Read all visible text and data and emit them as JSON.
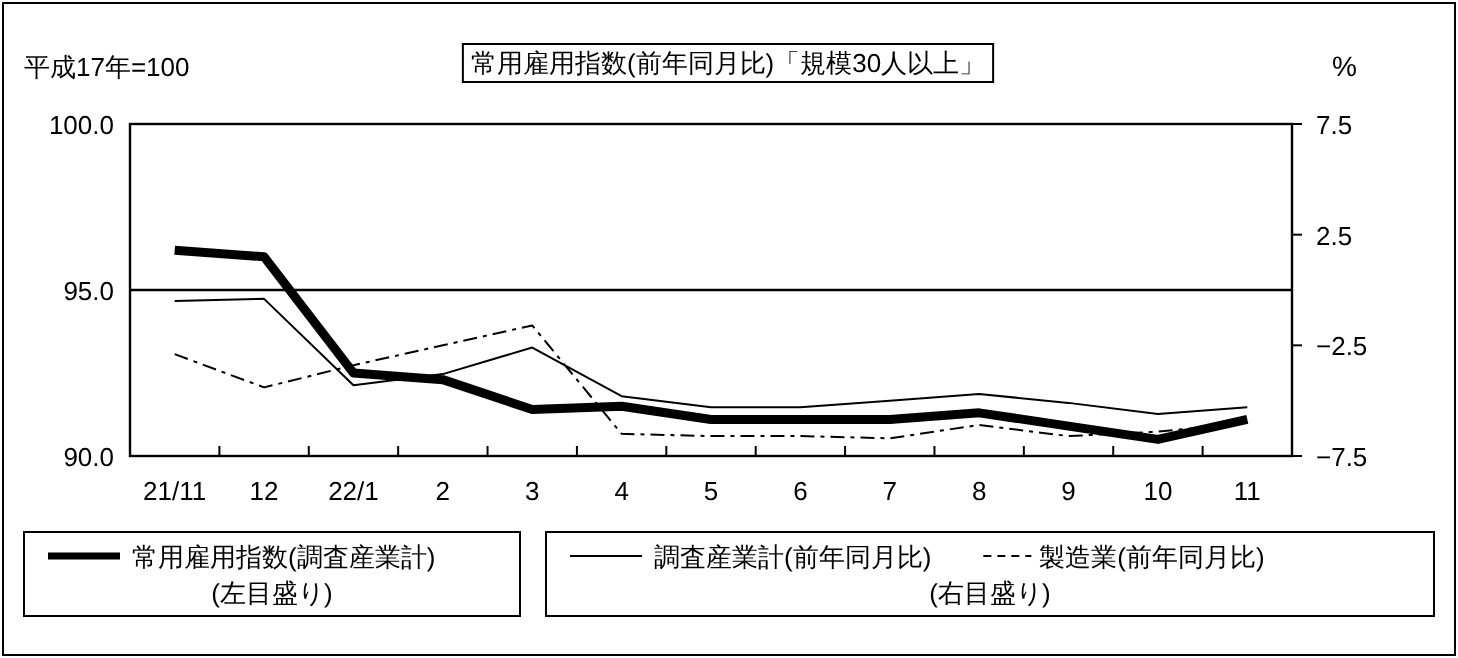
{
  "chart_data": {
    "type": "line",
    "title": "常用雇用指数(前年同月比)「規模30人以上」",
    "ylabel": "平成17年=100",
    "y2label": "%",
    "categories": [
      "21/11",
      "12",
      "22/1",
      "2",
      "3",
      "4",
      "5",
      "6",
      "7",
      "8",
      "9",
      "10",
      "11"
    ],
    "series": [
      {
        "name": "常用雇用指数(調査産業計)",
        "color": "#000000",
        "line_style": "solid",
        "values": [
          96.2,
          96.0,
          92.5,
          92.3,
          91.4,
          91.5,
          91.1,
          91.1,
          91.1,
          91.3,
          90.9,
          90.5,
          91.1
        ]
      },
      {
        "name": "調査産業計(前年同月比)",
        "color": "#000000",
        "line_style": "solid",
        "axis": "y2",
        "values": [
          -0.5,
          -0.4,
          -4.3,
          -3.8,
          -2.6,
          -4.8,
          -5.3,
          -5.3,
          -5.0,
          -4.7,
          -5.1,
          -5.6,
          -5.3
        ]
      },
      {
        "name": "製造業(前年同月比)",
        "color": "#000000",
        "line_style": "dashed",
        "axis": "y2",
        "values": [
          -2.9,
          -4.4,
          -3.4,
          -2.5,
          -1.6,
          -6.5,
          -6.6,
          -6.6,
          -6.7,
          -6.1,
          -6.6,
          -6.4,
          -6.0
        ]
      }
    ],
    "ylim": [
      90,
      100
    ],
    "yticks": [
      {
        "value": 90,
        "label": "90.0"
      },
      {
        "value": 95,
        "label": "95.0"
      },
      {
        "value": 100,
        "label": "100.0"
      }
    ],
    "y2lim": [
      -7.5,
      7.5
    ],
    "y2ticks": [
      {
        "value": -7.5,
        "label": "−7.5"
      },
      {
        "value": -2.5,
        "label": "−2.5"
      },
      2.5,
      7.5
    ],
    "ref_lines": [
      {
        "axis": "y2",
        "value": 0
      }
    ],
    "annotations": [
      "(左目盛り)",
      "(右目盛り)"
    ],
    "legend": "bottom",
    "grid": false
  }
}
